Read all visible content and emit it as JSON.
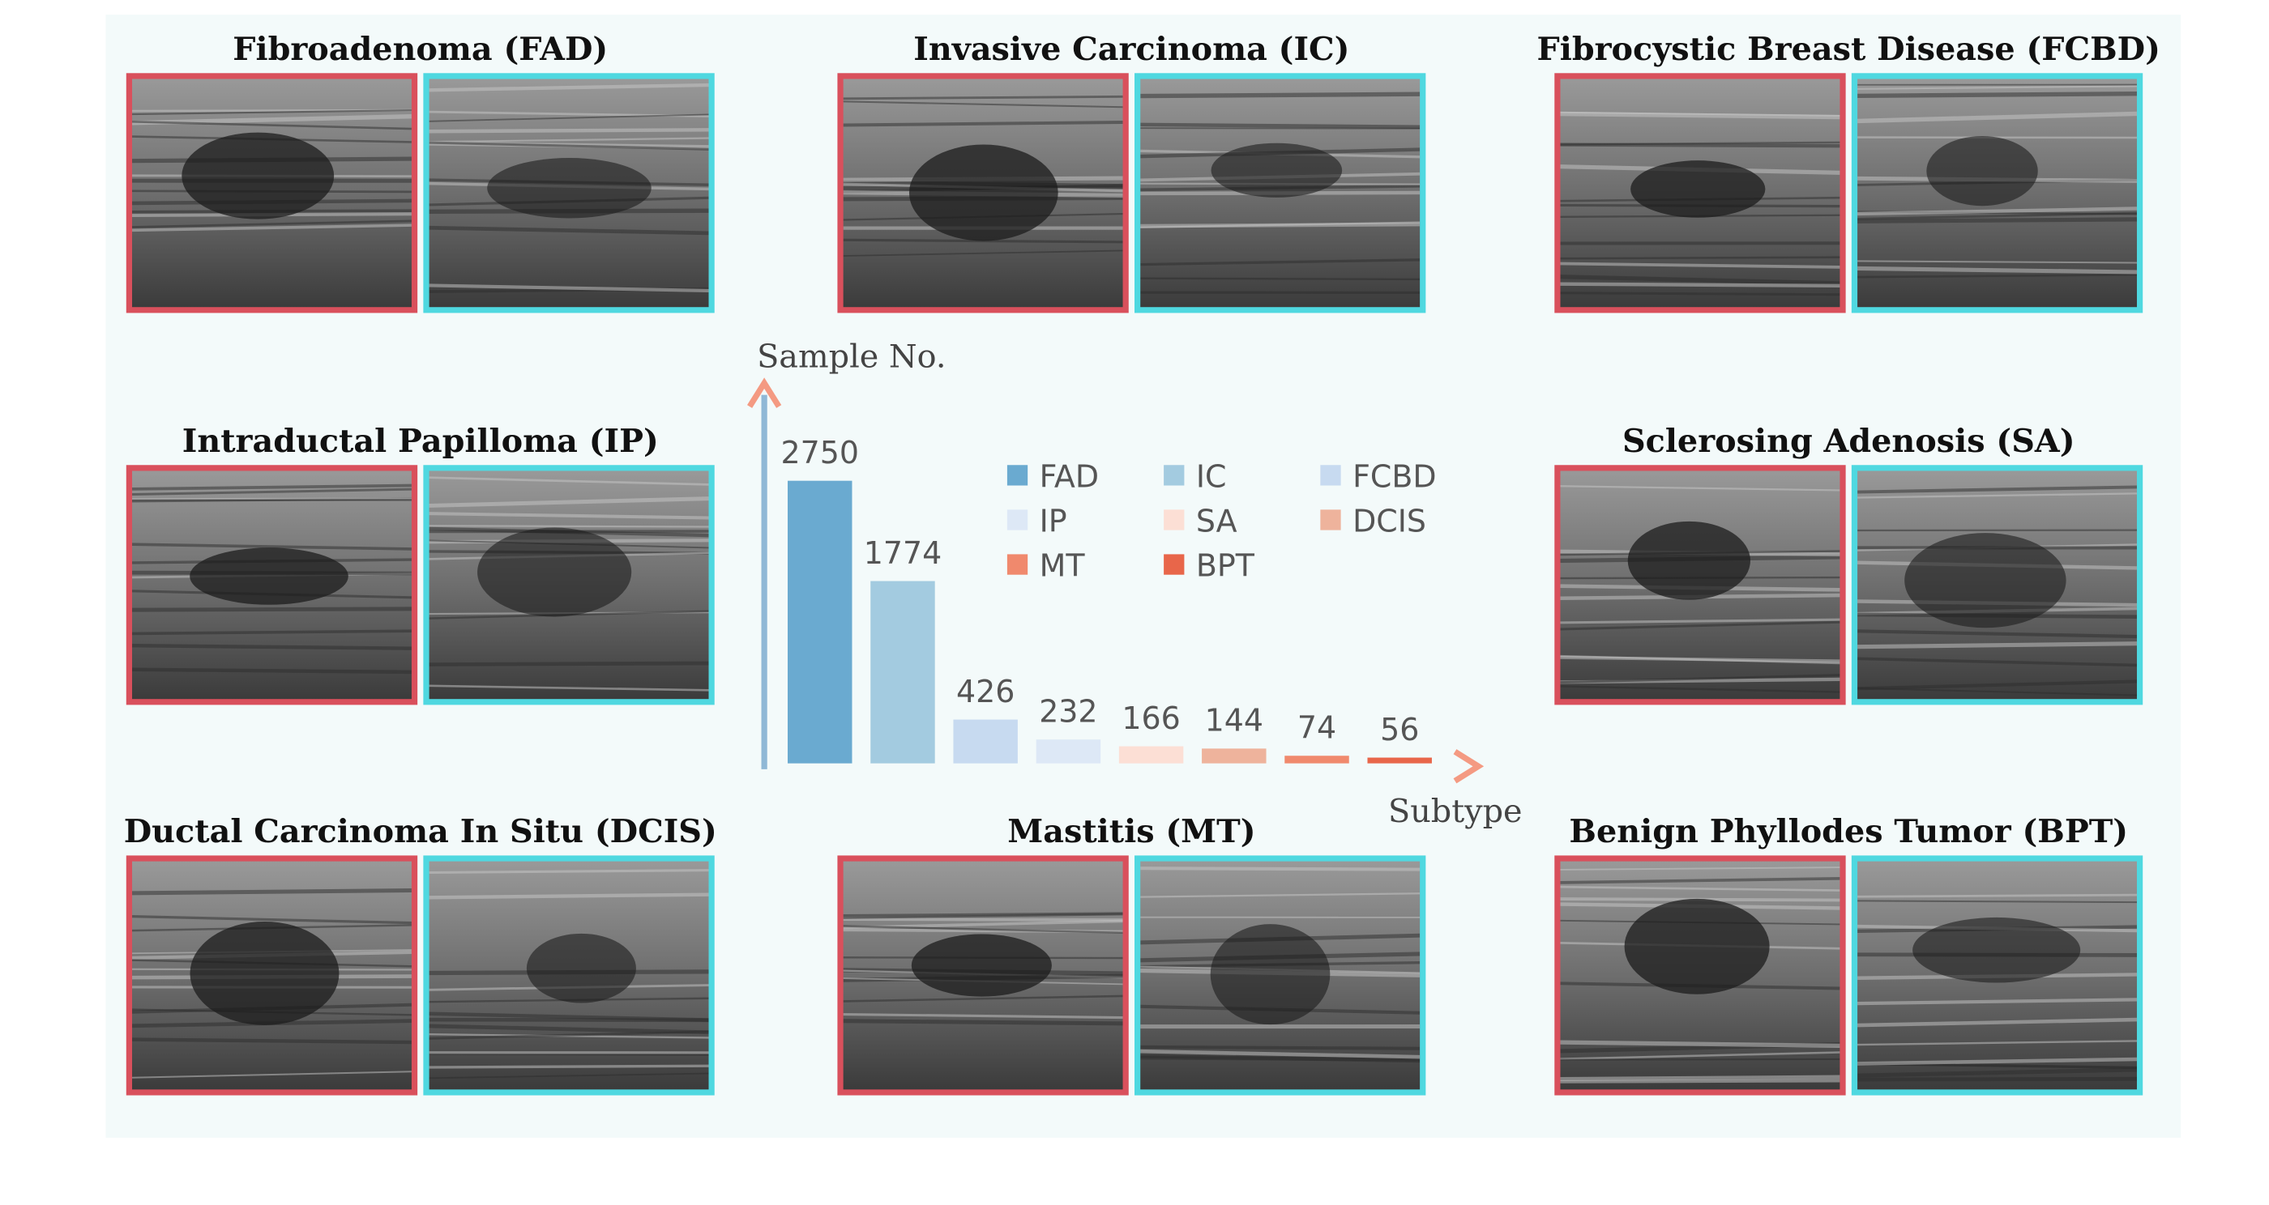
{
  "panel_titles": [
    "Fibroadenoma (FAD)",
    "Invasive Carcinoma (IC)",
    "Fibrocystic Breast Disease (FCBD)",
    "Intraductal Papilloma (IP)",
    "Sclerosing Adenosis (SA)",
    "Ductal Carcinoma In Situ (DCIS)",
    "Mastitis (MT)",
    "Benign Phyllodes Tumor (BPT)"
  ],
  "chart_data": {
    "type": "bar",
    "y_label": "Sample No.",
    "x_label": "Subtype",
    "categories": [
      "FAD",
      "IC",
      "FCBD",
      "IP",
      "SA",
      "DCIS",
      "MT",
      "BPT"
    ],
    "values": [
      2750,
      1774,
      426,
      232,
      166,
      144,
      74,
      56
    ],
    "colors": [
      "#6aaad0",
      "#a3cbe0",
      "#c7daf0",
      "#dde8f6",
      "#fcdfd5",
      "#eeb39c",
      "#f0896d",
      "#e8664a"
    ],
    "ylim": [
      0,
      3700
    ],
    "legend": "upper right"
  }
}
